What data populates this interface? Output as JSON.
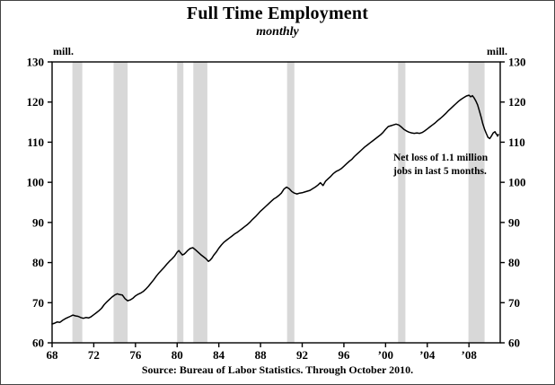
{
  "source": "Source: Bureau of Labor Statistics. Through October 2010.",
  "chart_data": {
    "type": "line",
    "title": "Full Time Employment",
    "subtitle": "monthly",
    "unit_left": "mill.",
    "unit_right": "mill.",
    "ylabel": "mill.",
    "ylim": [
      60,
      130
    ],
    "yticks": [
      60,
      70,
      80,
      90,
      100,
      110,
      120,
      130
    ],
    "xlim": [
      1968,
      2011
    ],
    "xticks": [
      {
        "x": 1968,
        "label": "68"
      },
      {
        "x": 1972,
        "label": "72"
      },
      {
        "x": 1976,
        "label": "76"
      },
      {
        "x": 1980,
        "label": "80"
      },
      {
        "x": 1984,
        "label": "84"
      },
      {
        "x": 1988,
        "label": "88"
      },
      {
        "x": 1992,
        "label": "92"
      },
      {
        "x": 1996,
        "label": "96"
      },
      {
        "x": 2000,
        "label": "’00"
      },
      {
        "x": 2004,
        "label": "’04"
      },
      {
        "x": 2008,
        "label": "’08"
      }
    ],
    "grid": false,
    "legend": false,
    "line_color": "#000000",
    "band_color": "#d8d8d8",
    "recession_bands": [
      [
        1969.95,
        1970.9
      ],
      [
        1973.9,
        1975.25
      ],
      [
        1980.0,
        1980.6
      ],
      [
        1981.55,
        1982.9
      ],
      [
        1990.55,
        1991.25
      ],
      [
        2001.2,
        2001.9
      ],
      [
        2007.95,
        2009.5
      ]
    ],
    "annotation": {
      "line1": "Net loss of 1.1 million",
      "line2": "jobs in last 5 months."
    },
    "series": [
      {
        "name": "Full-time employment (monthly, millions)",
        "points": [
          [
            1968.0,
            64.7
          ],
          [
            1968.25,
            64.9
          ],
          [
            1968.5,
            65.2
          ],
          [
            1968.75,
            65.1
          ],
          [
            1969.0,
            65.6
          ],
          [
            1969.25,
            66.0
          ],
          [
            1969.5,
            66.3
          ],
          [
            1969.75,
            66.6
          ],
          [
            1970.0,
            66.9
          ],
          [
            1970.25,
            66.7
          ],
          [
            1970.5,
            66.6
          ],
          [
            1970.75,
            66.3
          ],
          [
            1971.0,
            66.1
          ],
          [
            1971.25,
            66.3
          ],
          [
            1971.5,
            66.2
          ],
          [
            1971.75,
            66.5
          ],
          [
            1972.0,
            67.0
          ],
          [
            1972.25,
            67.5
          ],
          [
            1972.5,
            68.0
          ],
          [
            1972.75,
            68.6
          ],
          [
            1973.0,
            69.5
          ],
          [
            1973.25,
            70.2
          ],
          [
            1973.5,
            70.8
          ],
          [
            1973.75,
            71.4
          ],
          [
            1974.0,
            71.9
          ],
          [
            1974.25,
            72.2
          ],
          [
            1974.5,
            72.0
          ],
          [
            1974.75,
            71.9
          ],
          [
            1975.0,
            71.0
          ],
          [
            1975.25,
            70.5
          ],
          [
            1975.5,
            70.7
          ],
          [
            1975.75,
            71.1
          ],
          [
            1976.0,
            71.7
          ],
          [
            1976.25,
            72.1
          ],
          [
            1976.5,
            72.4
          ],
          [
            1976.75,
            72.8
          ],
          [
            1977.0,
            73.4
          ],
          [
            1977.25,
            74.1
          ],
          [
            1977.5,
            74.9
          ],
          [
            1977.75,
            75.7
          ],
          [
            1978.0,
            76.6
          ],
          [
            1978.25,
            77.4
          ],
          [
            1978.5,
            78.1
          ],
          [
            1978.75,
            78.8
          ],
          [
            1979.0,
            79.6
          ],
          [
            1979.25,
            80.3
          ],
          [
            1979.5,
            80.9
          ],
          [
            1979.75,
            81.6
          ],
          [
            1980.0,
            82.6
          ],
          [
            1980.17,
            83.0
          ],
          [
            1980.33,
            82.4
          ],
          [
            1980.5,
            81.9
          ],
          [
            1980.67,
            82.1
          ],
          [
            1980.83,
            82.5
          ],
          [
            1981.0,
            83.0
          ],
          [
            1981.25,
            83.5
          ],
          [
            1981.5,
            83.7
          ],
          [
            1981.75,
            83.2
          ],
          [
            1982.0,
            82.6
          ],
          [
            1982.25,
            82.0
          ],
          [
            1982.5,
            81.5
          ],
          [
            1982.75,
            81.0
          ],
          [
            1983.0,
            80.3
          ],
          [
            1983.17,
            80.6
          ],
          [
            1983.33,
            81.1
          ],
          [
            1983.5,
            81.8
          ],
          [
            1983.75,
            82.6
          ],
          [
            1984.0,
            83.6
          ],
          [
            1984.25,
            84.4
          ],
          [
            1984.5,
            85.1
          ],
          [
            1984.75,
            85.6
          ],
          [
            1985.0,
            86.1
          ],
          [
            1985.25,
            86.6
          ],
          [
            1985.5,
            87.1
          ],
          [
            1985.75,
            87.5
          ],
          [
            1986.0,
            88.0
          ],
          [
            1986.25,
            88.5
          ],
          [
            1986.5,
            89.0
          ],
          [
            1986.75,
            89.5
          ],
          [
            1987.0,
            90.1
          ],
          [
            1987.25,
            90.8
          ],
          [
            1987.5,
            91.4
          ],
          [
            1987.75,
            92.1
          ],
          [
            1988.0,
            92.8
          ],
          [
            1988.25,
            93.4
          ],
          [
            1988.5,
            94.0
          ],
          [
            1988.75,
            94.6
          ],
          [
            1989.0,
            95.2
          ],
          [
            1989.25,
            95.8
          ],
          [
            1989.5,
            96.2
          ],
          [
            1989.75,
            96.7
          ],
          [
            1990.0,
            97.3
          ],
          [
            1990.25,
            98.3
          ],
          [
            1990.5,
            98.8
          ],
          [
            1990.75,
            98.4
          ],
          [
            1991.0,
            97.7
          ],
          [
            1991.25,
            97.3
          ],
          [
            1991.5,
            97.1
          ],
          [
            1991.75,
            97.3
          ],
          [
            1992.0,
            97.4
          ],
          [
            1992.25,
            97.6
          ],
          [
            1992.5,
            97.8
          ],
          [
            1992.75,
            98.0
          ],
          [
            1993.0,
            98.4
          ],
          [
            1993.25,
            98.8
          ],
          [
            1993.5,
            99.3
          ],
          [
            1993.75,
            99.9
          ],
          [
            1994.0,
            99.2
          ],
          [
            1994.25,
            100.3
          ],
          [
            1994.5,
            100.9
          ],
          [
            1994.75,
            101.5
          ],
          [
            1995.0,
            102.2
          ],
          [
            1995.25,
            102.7
          ],
          [
            1995.5,
            103.0
          ],
          [
            1995.75,
            103.4
          ],
          [
            1996.0,
            104.0
          ],
          [
            1996.25,
            104.6
          ],
          [
            1996.5,
            105.2
          ],
          [
            1996.75,
            105.7
          ],
          [
            1997.0,
            106.4
          ],
          [
            1997.25,
            107.0
          ],
          [
            1997.5,
            107.6
          ],
          [
            1997.75,
            108.2
          ],
          [
            1998.0,
            108.8
          ],
          [
            1998.25,
            109.3
          ],
          [
            1998.5,
            109.8
          ],
          [
            1998.75,
            110.3
          ],
          [
            1999.0,
            110.8
          ],
          [
            1999.25,
            111.3
          ],
          [
            1999.5,
            111.8
          ],
          [
            1999.75,
            112.4
          ],
          [
            2000.0,
            113.2
          ],
          [
            2000.25,
            113.9
          ],
          [
            2000.5,
            114.1
          ],
          [
            2000.75,
            114.3
          ],
          [
            2001.0,
            114.5
          ],
          [
            2001.25,
            114.3
          ],
          [
            2001.5,
            113.8
          ],
          [
            2001.75,
            113.2
          ],
          [
            2002.0,
            112.8
          ],
          [
            2002.25,
            112.5
          ],
          [
            2002.5,
            112.3
          ],
          [
            2002.75,
            112.2
          ],
          [
            2003.0,
            112.3
          ],
          [
            2003.25,
            112.2
          ],
          [
            2003.5,
            112.4
          ],
          [
            2003.75,
            112.8
          ],
          [
            2004.0,
            113.3
          ],
          [
            2004.25,
            113.8
          ],
          [
            2004.5,
            114.3
          ],
          [
            2004.75,
            114.8
          ],
          [
            2005.0,
            115.4
          ],
          [
            2005.25,
            115.9
          ],
          [
            2005.5,
            116.5
          ],
          [
            2005.75,
            117.1
          ],
          [
            2006.0,
            117.8
          ],
          [
            2006.25,
            118.4
          ],
          [
            2006.5,
            119.0
          ],
          [
            2006.75,
            119.6
          ],
          [
            2007.0,
            120.2
          ],
          [
            2007.25,
            120.7
          ],
          [
            2007.5,
            121.1
          ],
          [
            2007.75,
            121.5
          ],
          [
            2008.0,
            121.7
          ],
          [
            2008.17,
            121.3
          ],
          [
            2008.33,
            121.6
          ],
          [
            2008.5,
            121.0
          ],
          [
            2008.67,
            120.2
          ],
          [
            2008.83,
            119.3
          ],
          [
            2009.0,
            117.8
          ],
          [
            2009.17,
            116.2
          ],
          [
            2009.33,
            114.6
          ],
          [
            2009.5,
            113.2
          ],
          [
            2009.67,
            112.1
          ],
          [
            2009.83,
            111.2
          ],
          [
            2010.0,
            110.9
          ],
          [
            2010.17,
            111.6
          ],
          [
            2010.33,
            112.3
          ],
          [
            2010.5,
            112.6
          ],
          [
            2010.58,
            112.2
          ],
          [
            2010.67,
            111.9
          ],
          [
            2010.75,
            111.5
          ],
          [
            2010.83,
            111.9
          ]
        ]
      }
    ]
  }
}
